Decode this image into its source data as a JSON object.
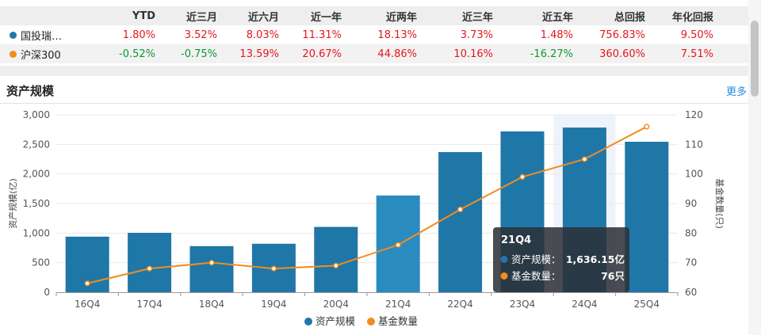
{
  "table": {
    "headers": [
      "YTD",
      "近三月",
      "近六月",
      "近一年",
      "近两年",
      "近三年",
      "近五年",
      "总回报",
      "年化回报"
    ],
    "rows": [
      {
        "name": "国投瑞…",
        "color": "#1f77a8",
        "values": [
          "1.80%",
          "3.52%",
          "8.03%",
          "11.31%",
          "18.13%",
          "3.73%",
          "1.48%",
          "756.83%",
          "9.50%"
        ],
        "neg": [
          false,
          false,
          false,
          false,
          false,
          false,
          false,
          false,
          false
        ]
      },
      {
        "name": "沪深300",
        "color": "#f28c1e",
        "values": [
          "-0.52%",
          "-0.75%",
          "13.59%",
          "20.67%",
          "44.86%",
          "10.16%",
          "-16.27%",
          "360.60%",
          "7.51%"
        ],
        "neg": [
          true,
          true,
          false,
          false,
          false,
          false,
          true,
          false,
          false
        ]
      }
    ]
  },
  "section": {
    "title": "资产规模",
    "more": "更多"
  },
  "chart_data": {
    "type": "bar",
    "categories": [
      "16Q4",
      "17Q4",
      "18Q4",
      "19Q4",
      "20Q4",
      "21Q4",
      "22Q4",
      "23Q4",
      "24Q4",
      "25Q4"
    ],
    "series": [
      {
        "name": "资产规模",
        "type": "bar",
        "axis": "left",
        "color": "#1f77a8",
        "values": [
          940,
          1005,
          780,
          820,
          1105,
          1636.15,
          2370,
          2720,
          2785,
          2545
        ]
      },
      {
        "name": "基金数量",
        "type": "line",
        "axis": "right",
        "color": "#f28c1e",
        "values": [
          63,
          68,
          70,
          68,
          69,
          76,
          88,
          99,
          105,
          116
        ]
      }
    ],
    "ylabel": "资产规模(亿)",
    "ylim": [
      0,
      3000
    ],
    "yticks": [
      "0",
      "500",
      "1,000",
      "1,500",
      "2,000",
      "2,500",
      "3,000"
    ],
    "y2label": "基金数量(只)",
    "y2lim": [
      60,
      120
    ],
    "y2ticks": [
      "60",
      "70",
      "80",
      "90",
      "100",
      "110",
      "120"
    ],
    "highlight_index": 5,
    "shaded_index": 8,
    "grid": true,
    "legend": "bottom-center"
  },
  "tooltip": {
    "title": "21Q4",
    "rows": [
      {
        "label": "资产规模：",
        "value": "1,636.15亿",
        "color": "#1f77a8"
      },
      {
        "label": "基金数量：",
        "value": "76只",
        "color": "#f28c1e"
      }
    ]
  }
}
